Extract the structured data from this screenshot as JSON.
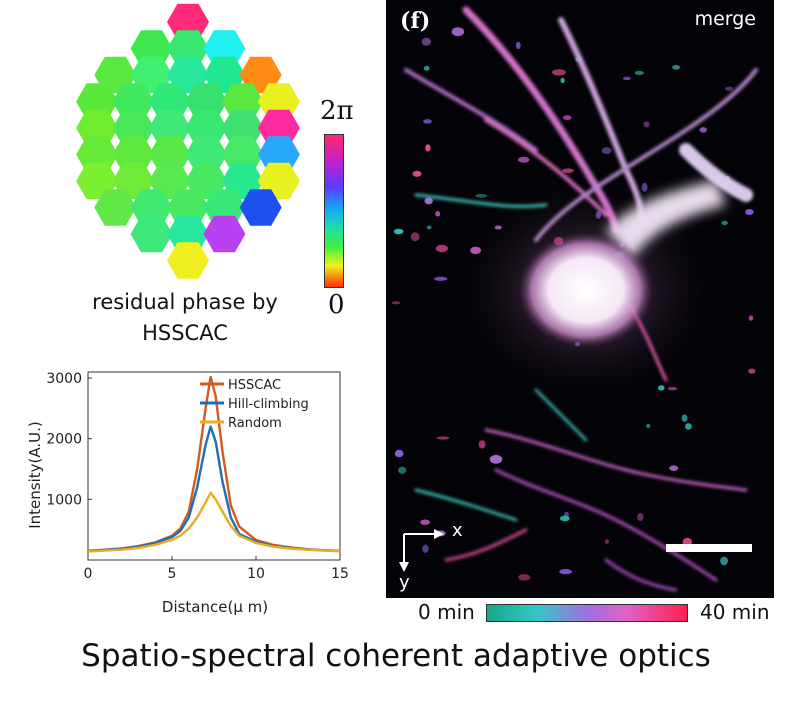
{
  "hex_panel": {
    "colorbar_max": "2π",
    "colorbar_min": "0",
    "caption_line1": "residual phase by",
    "caption_line2": "HSSCAC",
    "hex_colors": [
      [
        "#ff2a7a"
      ],
      [
        "#40e850",
        "#38e870",
        "#20f0f0"
      ],
      [
        "#5ae840",
        "#40f070",
        "#28e8a0",
        "#20e890",
        "#ff8a14"
      ],
      [
        "#58e838",
        "#40e860",
        "#30e878",
        "#38e070",
        "#58e840",
        "#e8f020"
      ],
      [
        "#70ec30",
        "#48e858",
        "#40e878",
        "#38e870",
        "#40e070",
        "#ff2aa0"
      ],
      [
        "#68ea38",
        "#60e840",
        "#5ae848",
        "#40e878",
        "#48e868",
        "#28a8f8"
      ],
      [
        "#7cef30",
        "#70ec38",
        "#58e850",
        "#48e860",
        "#28e890",
        "#e8f020"
      ],
      [
        "#60e848",
        "#40e870",
        "#48e860",
        "#38e878",
        "#1e50f0"
      ],
      [
        "#3ce878",
        "#28e8a0",
        "#b840f0"
      ],
      [
        "#f0f020"
      ]
    ]
  },
  "plot": {
    "ylabel": "Intensity(A.U.)",
    "xlabel": "Distance(μ m)",
    "x_ticks": [
      "0",
      "5",
      "10",
      "15"
    ],
    "y_ticks": [
      "1000",
      "2000",
      "3000"
    ]
  },
  "chart_data": {
    "type": "line",
    "xlabel": "Distance(μ m)",
    "ylabel": "Intensity(A.U.)",
    "xlim": [
      0,
      15
    ],
    "ylim": [
      0,
      3100
    ],
    "legend_position": "top-right",
    "x": [
      0,
      1,
      2,
      3,
      4,
      5,
      5.5,
      6,
      6.5,
      7,
      7.3,
      7.6,
      8,
      8.5,
      9,
      10,
      11,
      12,
      13,
      14,
      15
    ],
    "series": [
      {
        "name": "HSSCAC",
        "color": "#d35b1e",
        "values": [
          150,
          170,
          190,
          230,
          290,
          400,
          520,
          800,
          1500,
          2500,
          3020,
          2700,
          1800,
          900,
          550,
          330,
          250,
          210,
          180,
          160,
          150
        ]
      },
      {
        "name": "Hill-climbing",
        "color": "#1f6fb4",
        "values": [
          150,
          165,
          185,
          220,
          280,
          380,
          480,
          700,
          1200,
          1900,
          2200,
          1950,
          1300,
          700,
          430,
          300,
          230,
          200,
          175,
          160,
          150
        ]
      },
      {
        "name": "Random",
        "color": "#e8ae22",
        "values": [
          140,
          155,
          170,
          200,
          250,
          330,
          400,
          520,
          700,
          950,
          1110,
          1000,
          800,
          560,
          400,
          280,
          220,
          190,
          170,
          155,
          145
        ]
      }
    ]
  },
  "micrograph": {
    "panel_label": "(f)",
    "channel_label": "merge",
    "axis_x": "x",
    "axis_y": "y"
  },
  "time_bar": {
    "start": "0 min",
    "end": "40 min"
  },
  "caption": "Spatio-spectral coherent adaptive optics"
}
